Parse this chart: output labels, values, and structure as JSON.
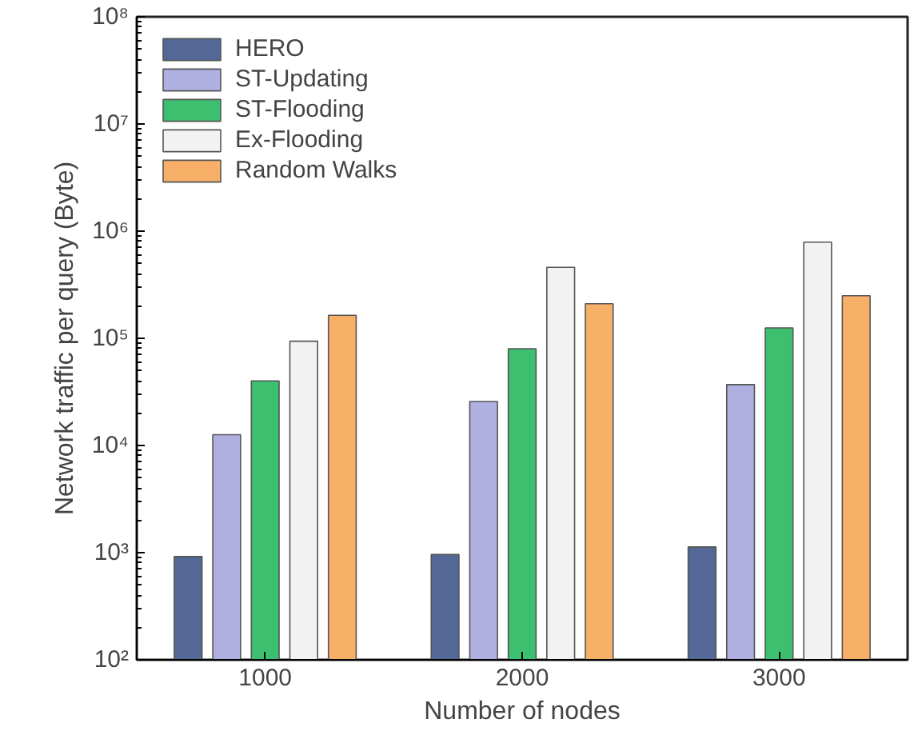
{
  "chart_data": {
    "type": "bar",
    "xlabel": "Number of nodes",
    "ylabel": "Network traffic per query (Byte)",
    "categories": [
      "1000",
      "2000",
      "3000"
    ],
    "series": [
      {
        "name": "HERO",
        "color": "#536896",
        "values": [
          920,
          960,
          1130
        ]
      },
      {
        "name": "ST-Updating",
        "color": "#afb0e0",
        "values": [
          12600,
          25700,
          37000
        ]
      },
      {
        "name": "ST-Flooding",
        "color": "#3cc070",
        "values": [
          40000,
          80000,
          125000
        ]
      },
      {
        "name": "Ex-Flooding",
        "color": "#f2f2f2",
        "values": [
          94000,
          460000,
          790000
        ]
      },
      {
        "name": "Random Walks",
        "color": "#f8b068",
        "values": [
          164000,
          210000,
          250000
        ]
      }
    ],
    "log": true,
    "ylim": [
      100,
      100000000
    ],
    "yticks": [
      {
        "value": 100,
        "label": "10²"
      },
      {
        "value": 1000,
        "label": "10³"
      },
      {
        "value": 10000,
        "label": "10⁴"
      },
      {
        "value": 100000,
        "label": "10⁵"
      },
      {
        "value": 1000000,
        "label": "10⁶"
      },
      {
        "value": 10000000,
        "label": "10⁷"
      },
      {
        "value": 100000000,
        "label": "10⁸"
      }
    ],
    "grid": false,
    "legend": "top left"
  }
}
